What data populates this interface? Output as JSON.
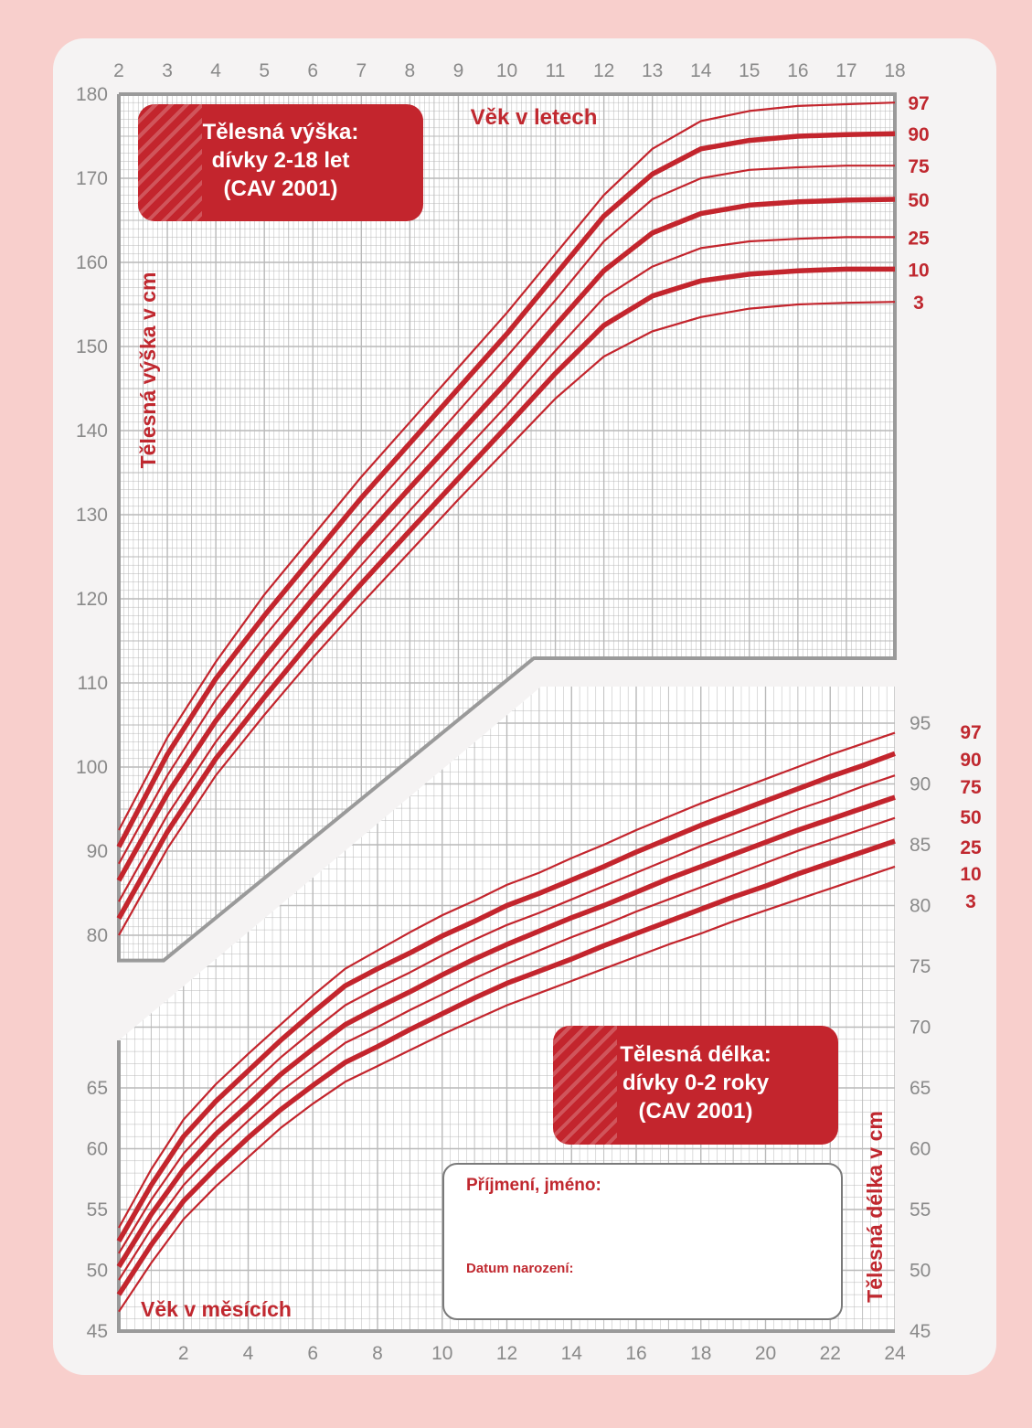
{
  "colors": {
    "background": "#f8cfcc",
    "card": "#f5f3f3",
    "accent": "#c3252d",
    "grid": "#b9b9b9",
    "axis_text": "#8a8a8a"
  },
  "chart_data": [
    {
      "type": "line",
      "title": "Tělesná výška: dívky 2-18 let (CAV 2001)",
      "title_lines": [
        "Tělesná výška:",
        "dívky 2-18 let",
        "(CAV 2001)"
      ],
      "xlabel": "Věk v letech",
      "ylabel": "Tělesná výška v cm",
      "x_ticks": [
        "2",
        "3",
        "4",
        "5",
        "6",
        "7",
        "8",
        "9",
        "10",
        "11",
        "12",
        "13",
        "14",
        "15",
        "16",
        "17",
        "18"
      ],
      "y_ticks": [
        "80",
        "90",
        "100",
        "110",
        "120",
        "130",
        "140",
        "150",
        "160",
        "170",
        "180"
      ],
      "xlim": [
        2,
        18
      ],
      "ylim": [
        77,
        180
      ],
      "grid": true,
      "x": [
        2,
        3,
        4,
        5,
        6,
        7,
        8,
        9,
        10,
        11,
        12,
        13,
        14,
        15,
        16,
        17,
        18
      ],
      "series": [
        {
          "name": "97",
          "values": [
            92.5,
            103.5,
            112.5,
            120.5,
            127.5,
            134.5,
            141,
            147.5,
            154,
            161,
            168,
            173.5,
            176.8,
            178,
            178.6,
            178.8,
            179
          ]
        },
        {
          "name": "90",
          "values": [
            90.5,
            101.5,
            110.5,
            118,
            125,
            132,
            138.5,
            145,
            151.5,
            158.5,
            165.5,
            170.5,
            173.5,
            174.5,
            175,
            175.2,
            175.3
          ]
        },
        {
          "name": "75",
          "values": [
            88.5,
            99,
            108,
            115.5,
            122.5,
            129.3,
            135.8,
            142.3,
            148.8,
            155.5,
            162.5,
            167.5,
            170,
            171,
            171.3,
            171.5,
            171.5
          ]
        },
        {
          "name": "50",
          "values": [
            86.5,
            96.8,
            105.5,
            113,
            120,
            126.8,
            133.2,
            139.5,
            145.8,
            152.5,
            159,
            163.5,
            165.8,
            166.8,
            167.2,
            167.4,
            167.5
          ]
        },
        {
          "name": "25",
          "values": [
            84,
            94.3,
            103,
            110.5,
            117.5,
            124,
            130.5,
            136.8,
            143,
            149.5,
            155.8,
            159.5,
            161.7,
            162.5,
            162.8,
            163,
            163
          ]
        },
        {
          "name": "10",
          "values": [
            82,
            92.3,
            101,
            108.3,
            115.3,
            121.8,
            128.1,
            134.3,
            140.5,
            146.8,
            152.5,
            156,
            157.8,
            158.6,
            159,
            159.2,
            159.2
          ]
        },
        {
          "name": "3",
          "values": [
            80,
            90.3,
            99,
            106.2,
            113,
            119.4,
            125.6,
            131.8,
            137.8,
            143.8,
            148.8,
            151.8,
            153.5,
            154.5,
            155,
            155.2,
            155.3
          ]
        }
      ]
    },
    {
      "type": "line",
      "title": "Tělesná délka: dívky 0-2 roky (CAV 2001)",
      "title_lines": [
        "Tělesná délka:",
        "dívky 0-2 roky",
        "(CAV 2001)"
      ],
      "xlabel": "Věk v měsících",
      "ylabel": "Tělesná délka v cm",
      "x_ticks": [
        "2",
        "4",
        "6",
        "8",
        "10",
        "12",
        "14",
        "16",
        "18",
        "20",
        "22",
        "24"
      ],
      "y_ticks_left": [
        "45",
        "50",
        "55",
        "60",
        "65"
      ],
      "y_ticks_right": [
        "45",
        "50",
        "55",
        "60",
        "65",
        "70",
        "75",
        "80",
        "85",
        "90",
        "95"
      ],
      "xlim": [
        0,
        24
      ],
      "ylim": [
        45,
        96
      ],
      "grid": true,
      "x": [
        0,
        1,
        2,
        3,
        4,
        5,
        6,
        7,
        8,
        9,
        10,
        11,
        12,
        13,
        14,
        15,
        16,
        17,
        18,
        19,
        20,
        21,
        22,
        23,
        24
      ],
      "series": [
        {
          "name": "97",
          "values": [
            53.5,
            58.3,
            62.4,
            65.3,
            67.8,
            70.2,
            72.6,
            74.8,
            76.3,
            77.8,
            79.2,
            80.4,
            81.7,
            82.7,
            83.9,
            85,
            86.2,
            87.3,
            88.4,
            89.4,
            90.4,
            91.4,
            92.4,
            93.3,
            94.2
          ]
        },
        {
          "name": "90",
          "values": [
            52.4,
            57,
            61,
            63.9,
            66.4,
            68.9,
            71.2,
            73.4,
            74.8,
            76.1,
            77.5,
            78.7,
            80,
            81,
            82.1,
            83.2,
            84.4,
            85.5,
            86.6,
            87.6,
            88.6,
            89.6,
            90.6,
            91.5,
            92.5
          ]
        },
        {
          "name": "75",
          "values": [
            51.4,
            55.8,
            59.6,
            62.5,
            65,
            67.5,
            69.7,
            71.8,
            73.2,
            74.5,
            75.9,
            77.2,
            78.4,
            79.4,
            80.5,
            81.6,
            82.7,
            83.8,
            84.9,
            85.9,
            86.9,
            87.9,
            88.8,
            89.8,
            90.7
          ]
        },
        {
          "name": "50",
          "values": [
            50.3,
            54.6,
            58.3,
            61.2,
            63.6,
            66.1,
            68.2,
            70.2,
            71.6,
            72.9,
            74.3,
            75.6,
            76.8,
            77.9,
            79,
            80,
            81.1,
            82.2,
            83.2,
            84.2,
            85.2,
            86.2,
            87.1,
            88,
            88.9
          ]
        },
        {
          "name": "25",
          "values": [
            49.2,
            53.4,
            57,
            59.8,
            62.3,
            64.7,
            66.7,
            68.7,
            70,
            71.4,
            72.7,
            74,
            75.2,
            76.3,
            77.4,
            78.4,
            79.5,
            80.5,
            81.5,
            82.5,
            83.5,
            84.5,
            85.4,
            86.3,
            87.2
          ]
        },
        {
          "name": "10",
          "values": [
            48,
            52.1,
            55.7,
            58.4,
            60.9,
            63.2,
            65.2,
            67.1,
            68.4,
            69.8,
            71.1,
            72.4,
            73.6,
            74.6,
            75.6,
            76.7,
            77.7,
            78.7,
            79.7,
            80.7,
            81.6,
            82.6,
            83.5,
            84.4,
            85.3
          ]
        },
        {
          "name": "3",
          "values": [
            46.6,
            50.6,
            54.2,
            56.9,
            59.3,
            61.7,
            63.7,
            65.5,
            66.8,
            68.1,
            69.4,
            70.6,
            71.8,
            72.8,
            73.8,
            74.8,
            75.8,
            76.8,
            77.7,
            78.7,
            79.6,
            80.5,
            81.4,
            82.3,
            83.2
          ]
        }
      ]
    }
  ],
  "form": {
    "name_label": "Příjmení, jméno:",
    "birth_label": "Datum narození:"
  }
}
